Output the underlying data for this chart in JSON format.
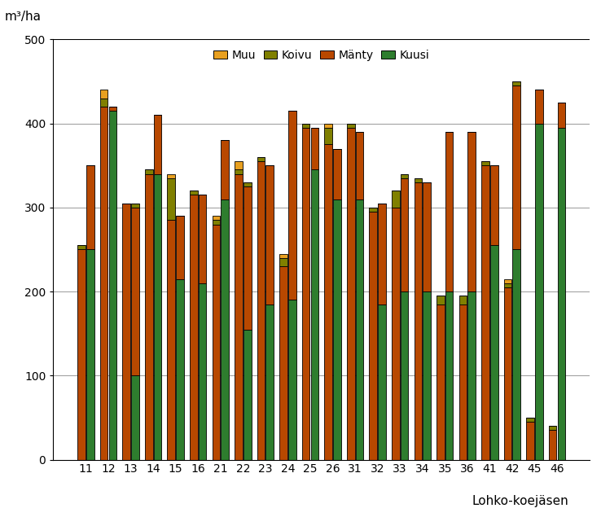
{
  "categories": [
    "11",
    "12",
    "13",
    "14",
    "15",
    "16",
    "21",
    "22",
    "23",
    "24",
    "25",
    "26",
    "31",
    "32",
    "33",
    "34",
    "35",
    "36",
    "41",
    "42",
    "45",
    "46"
  ],
  "bar1_kuusi": [
    0,
    0,
    0,
    0,
    0,
    0,
    0,
    0,
    0,
    0,
    0,
    0,
    0,
    0,
    0,
    0,
    0,
    0,
    0,
    0,
    0,
    0
  ],
  "bar1_manty": [
    250,
    420,
    305,
    340,
    285,
    315,
    280,
    340,
    355,
    230,
    395,
    375,
    395,
    295,
    300,
    330,
    185,
    185,
    350,
    205,
    45,
    35
  ],
  "bar1_koivu": [
    5,
    10,
    0,
    5,
    50,
    5,
    5,
    5,
    5,
    10,
    5,
    20,
    5,
    5,
    20,
    5,
    10,
    10,
    5,
    5,
    5,
    5
  ],
  "bar1_muu": [
    0,
    10,
    0,
    0,
    5,
    0,
    5,
    10,
    0,
    5,
    0,
    5,
    0,
    0,
    0,
    0,
    0,
    0,
    0,
    5,
    0,
    0
  ],
  "bar2_kuusi": [
    250,
    415,
    100,
    340,
    215,
    210,
    310,
    155,
    185,
    190,
    345,
    310,
    310,
    185,
    200,
    200,
    200,
    200,
    255,
    250,
    400,
    395
  ],
  "bar2_manty": [
    100,
    5,
    200,
    70,
    75,
    105,
    70,
    170,
    165,
    225,
    50,
    60,
    80,
    120,
    135,
    130,
    190,
    190,
    95,
    195,
    40,
    30
  ],
  "bar2_koivu": [
    0,
    0,
    5,
    0,
    0,
    0,
    0,
    5,
    0,
    0,
    0,
    0,
    0,
    0,
    5,
    0,
    0,
    0,
    0,
    5,
    0,
    0
  ],
  "bar2_muu": [
    0,
    0,
    0,
    0,
    0,
    0,
    0,
    0,
    0,
    0,
    0,
    0,
    0,
    0,
    0,
    0,
    0,
    0,
    0,
    0,
    0,
    0
  ],
  "color_kuusi": "#2e7d2e",
  "color_manty": "#b84800",
  "color_koivu": "#808000",
  "color_muu": "#e8a020",
  "ylabel": "m³/ha",
  "xlabel": "Lohko-koejäsen",
  "ylim": [
    0,
    500
  ],
  "yticks": [
    0,
    100,
    200,
    300,
    400,
    500
  ],
  "bg_color": "#ffffff",
  "bar_edge_color": "#000000",
  "bar_width": 0.35,
  "bar_gap": 0.04
}
